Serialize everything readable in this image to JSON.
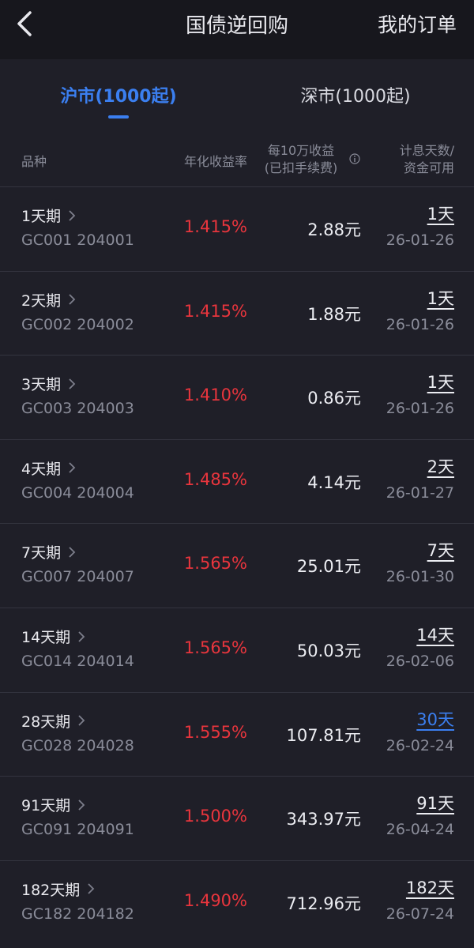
{
  "header": {
    "title": "国债逆回购",
    "action": "我的订单"
  },
  "tabs": [
    "沪市(1000起)",
    "深市(1000起)"
  ],
  "columns": {
    "variety": "品种",
    "rate": "年化收益率",
    "profit_line1": "每10万收益",
    "profit_line2": "(已扣手续费)",
    "days_line1": "计息天数/",
    "days_line2": "资金可用"
  },
  "table": {
    "rows": [
      {
        "name": "1天期",
        "code": "GC001 204001",
        "rate": "1.415%",
        "profit": "2.88元",
        "days": "1天",
        "date": "26-01-26"
      },
      {
        "name": "2天期",
        "code": "GC002 204002",
        "rate": "1.415%",
        "profit": "1.88元",
        "days": "1天",
        "date": "26-01-26"
      },
      {
        "name": "3天期",
        "code": "GC003 204003",
        "rate": "1.410%",
        "profit": "0.86元",
        "days": "1天",
        "date": "26-01-26"
      },
      {
        "name": "4天期",
        "code": "GC004 204004",
        "rate": "1.485%",
        "profit": "4.14元",
        "days": "2天",
        "date": "26-01-27"
      },
      {
        "name": "7天期",
        "code": "GC007 204007",
        "rate": "1.565%",
        "profit": "25.01元",
        "days": "7天",
        "date": "26-01-30"
      },
      {
        "name": "14天期",
        "code": "GC014 204014",
        "rate": "1.565%",
        "profit": "50.03元",
        "days": "14天",
        "date": "26-02-06"
      },
      {
        "name": "28天期",
        "code": "GC028 204028",
        "rate": "1.555%",
        "profit": "107.81元",
        "days": "30天",
        "date": "26-02-24",
        "days_color": "#3b7ff0"
      },
      {
        "name": "91天期",
        "code": "GC091 204091",
        "rate": "1.500%",
        "profit": "343.97元",
        "days": "91天",
        "date": "26-04-24"
      },
      {
        "name": "182天期",
        "code": "GC182 204182",
        "rate": "1.490%",
        "profit": "712.96元",
        "days": "182天",
        "date": "26-07-24"
      }
    ]
  }
}
